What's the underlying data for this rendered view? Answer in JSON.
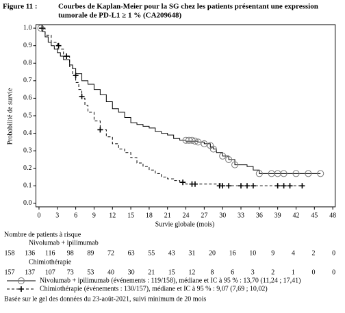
{
  "chart_data": {
    "type": "kaplan-meier",
    "figure_label": "Figure 11 :",
    "title": [
      "Courbes de Kaplan-Meier pour la SG chez les patients présentant une expression",
      "tumorale de PD-L1 ≥ 1 % (CA209648)"
    ],
    "x_label": "Survie globale (mois)",
    "y_label": "Probabilité de survie",
    "xlim": [
      -0.5,
      48.4
    ],
    "ylim": [
      -0.02,
      1.02
    ],
    "xticks": [
      0,
      3,
      6,
      9,
      12,
      15,
      18,
      21,
      24,
      27,
      30,
      33,
      36,
      39,
      42,
      45,
      48
    ],
    "yticks": [
      {
        "value": 0,
        "label": "0.0"
      },
      0.1,
      0.2,
      0.3,
      0.4,
      0.5,
      0.6,
      0.7,
      0.8,
      0.9,
      {
        "value": 1,
        "label": "1.0"
      }
    ],
    "series": [
      {
        "name": "Nivolumab + ipilimumab (événements : 119/158), médiane et IC à 95 % : 13,70 (11,24 ; 17,41)",
        "color": "#000000",
        "line_style": "solid",
        "censor_marker": "circle",
        "x": [
          0,
          0.5,
          1,
          1.5,
          2,
          2.5,
          3,
          3.5,
          4,
          5,
          5.5,
          6,
          7,
          8,
          9,
          10,
          11,
          12,
          13,
          14,
          15,
          16,
          17,
          18,
          19,
          20,
          21,
          22,
          23,
          24,
          26,
          27,
          28,
          28.5,
          29,
          30,
          31,
          32,
          34,
          35,
          36,
          46
        ],
        "values": [
          1.0,
          0.98,
          0.95,
          0.92,
          0.9,
          0.88,
          0.86,
          0.84,
          0.82,
          0.79,
          0.77,
          0.74,
          0.7,
          0.68,
          0.65,
          0.62,
          0.58,
          0.54,
          0.52,
          0.49,
          0.46,
          0.45,
          0.44,
          0.43,
          0.41,
          0.4,
          0.39,
          0.37,
          0.36,
          0.355,
          0.35,
          0.34,
          0.32,
          0.31,
          0.29,
          0.27,
          0.25,
          0.22,
          0.21,
          0.19,
          0.17,
          0.17
        ],
        "censor_x": [
          0.3,
          24,
          24.5,
          25,
          25.5,
          26,
          27,
          28,
          28.5,
          30,
          31,
          32,
          36,
          38,
          39,
          40,
          42,
          44,
          46
        ],
        "censor_values": [
          1.0,
          0.36,
          0.36,
          0.36,
          0.355,
          0.35,
          0.34,
          0.33,
          0.31,
          0.27,
          0.25,
          0.22,
          0.17,
          0.17,
          0.17,
          0.17,
          0.17,
          0.17,
          0.17
        ]
      },
      {
        "name": "Chimiothérapie (événements : 130/157), médiane et IC à 95 % : 9,07 (7,69 ; 10,02)",
        "color": "#000000",
        "line_style": "dashed",
        "censor_marker": "plus",
        "x": [
          0,
          1,
          2,
          3,
          4,
          5,
          5.5,
          6,
          6.5,
          7,
          7.5,
          8,
          9,
          10,
          11,
          12,
          13,
          14,
          15,
          16,
          17,
          18,
          19,
          20,
          21,
          22,
          23,
          24,
          30,
          43
        ],
        "values": [
          1.0,
          0.96,
          0.92,
          0.88,
          0.84,
          0.78,
          0.73,
          0.69,
          0.65,
          0.6,
          0.56,
          0.52,
          0.47,
          0.42,
          0.38,
          0.34,
          0.31,
          0.29,
          0.26,
          0.23,
          0.21,
          0.19,
          0.17,
          0.15,
          0.14,
          0.13,
          0.12,
          0.11,
          0.1,
          0.1
        ],
        "censor_x": [
          0.5,
          3.2,
          4.5,
          6,
          7,
          10,
          23.5,
          25,
          25.5,
          29.5,
          30,
          31,
          33,
          34,
          35,
          39,
          40,
          41,
          43
        ],
        "censor_values": [
          1.0,
          0.9,
          0.84,
          0.73,
          0.61,
          0.42,
          0.12,
          0.11,
          0.11,
          0.1,
          0.1,
          0.1,
          0.1,
          0.1,
          0.1,
          0.1,
          0.1,
          0.1,
          0.1
        ]
      }
    ],
    "risk_table": {
      "title": "Nombre de patients à risque",
      "rows": [
        {
          "label": "Nivolumab + ipilimumab",
          "counts": [
            "158",
            "136",
            "116",
            "98",
            "89",
            "72",
            "63",
            "55",
            "43",
            "31",
            "20",
            "16",
            "10",
            "9",
            "4",
            "2",
            "0"
          ]
        },
        {
          "label": "Chimiothérapie",
          "counts": [
            "157",
            "137",
            "107",
            "73",
            "53",
            "40",
            "30",
            "21",
            "15",
            "12",
            "8",
            "6",
            "3",
            "2",
            "1",
            "0",
            "0"
          ]
        }
      ]
    },
    "footnote": "Basée sur le gel des données du 23-août-2021, suivi minimum de 20 mois"
  }
}
